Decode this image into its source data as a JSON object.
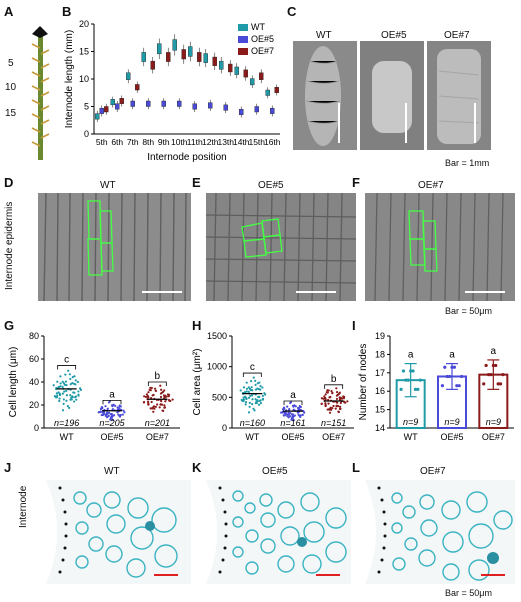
{
  "panels": {
    "A": "A",
    "B": "B",
    "C": "C",
    "D": "D",
    "E": "E",
    "F": "F",
    "G": "G",
    "H": "H",
    "I": "I",
    "J": "J",
    "K": "K",
    "L": "L"
  },
  "panel_a": {
    "node_labels": [
      "5",
      "10",
      "15"
    ]
  },
  "samples": [
    "WT",
    "OE#5",
    "OE#7"
  ],
  "colors": {
    "WT": "#1f9aa7",
    "OE5": "#4a4ad8",
    "OE7": "#8b1a1a"
  },
  "panel_c": {
    "titles": [
      "WT",
      "OE#5",
      "OE#7"
    ],
    "bar_label": "Bar = 1mm"
  },
  "panel_def": {
    "titles": [
      "WT",
      "OE#5",
      "OE#7"
    ],
    "row_label": "Internode epidermis",
    "bar_label": "Bar = 50μm"
  },
  "panel_jkl": {
    "titles": [
      "WT",
      "OE#5",
      "OE#7"
    ],
    "row_label": "Internode",
    "bar_label": "Bar = 50μm"
  },
  "chart_data": [
    {
      "id": "B",
      "type": "box",
      "xlabel": "Internode position",
      "ylabel": "Internode length (mm)",
      "ylim": [
        0,
        20
      ],
      "yticks": [
        0,
        5,
        10,
        15,
        20
      ],
      "categories": [
        "5th",
        "6th",
        "7th",
        "8th",
        "9th",
        "10th",
        "11th",
        "12th",
        "13th",
        "14th",
        "15th",
        "16th"
      ],
      "series": [
        {
          "name": "WT",
          "values": [
            3.2,
            5.8,
            10.5,
            14.0,
            15.5,
            16.2,
            15.0,
            13.8,
            12.5,
            11.5,
            9.5,
            7.5
          ]
        },
        {
          "name": "OE#5",
          "values": [
            4.2,
            5.0,
            5.5,
            5.5,
            5.5,
            5.5,
            5.0,
            5.2,
            4.8,
            4.0,
            4.5,
            4.2
          ]
        },
        {
          "name": "OE#7",
          "values": [
            4.5,
            6.0,
            8.5,
            12.5,
            14.0,
            14.5,
            14.0,
            13.2,
            12.0,
            11.0,
            10.5,
            8.0
          ]
        }
      ],
      "legend": "top-right"
    },
    {
      "id": "G",
      "type": "scatter",
      "ylabel": "Cell length (μm)",
      "ylim": [
        0,
        80
      ],
      "yticks": [
        0,
        20,
        40,
        60,
        80
      ],
      "categories": [
        "WT",
        "OE#5",
        "OE#7"
      ],
      "means": [
        34,
        15,
        25
      ],
      "n_labels": [
        "n=196",
        "n=205",
        "n=201"
      ],
      "letters": [
        "c",
        "a",
        "b"
      ]
    },
    {
      "id": "H",
      "type": "scatter",
      "ylabel": "Cell area (μm²)",
      "ylim": [
        0,
        1500
      ],
      "yticks": [
        0,
        500,
        1000,
        1500
      ],
      "categories": [
        "WT",
        "OE#5",
        "OE#7"
      ],
      "means": [
        560,
        275,
        440
      ],
      "n_labels": [
        "n=160",
        "n=161",
        "n=151"
      ],
      "letters": [
        "c",
        "a",
        "b"
      ]
    },
    {
      "id": "I",
      "type": "bar",
      "ylabel": "Number of nodes",
      "ylim": [
        14,
        19
      ],
      "yticks": [
        14,
        15,
        16,
        17,
        18,
        19
      ],
      "categories": [
        "WT",
        "OE#5",
        "OE#7"
      ],
      "values": [
        16.6,
        16.8,
        16.9
      ],
      "errors": [
        0.9,
        0.7,
        0.8
      ],
      "n_labels": [
        "n=9",
        "n=9",
        "n=9"
      ],
      "letters": [
        "a",
        "a",
        "a"
      ]
    }
  ]
}
